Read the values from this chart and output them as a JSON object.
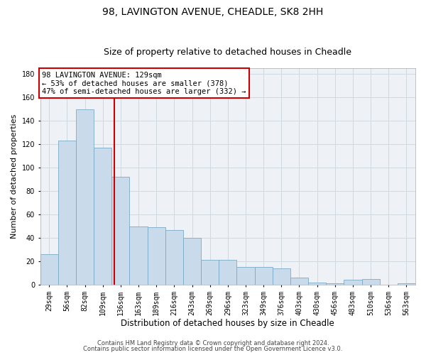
{
  "title1": "98, LAVINGTON AVENUE, CHEADLE, SK8 2HH",
  "title2": "Size of property relative to detached houses in Cheadle",
  "xlabel": "Distribution of detached houses by size in Cheadle",
  "ylabel": "Number of detached properties",
  "categories": [
    "29sqm",
    "56sqm",
    "82sqm",
    "109sqm",
    "136sqm",
    "163sqm",
    "189sqm",
    "216sqm",
    "243sqm",
    "269sqm",
    "296sqm",
    "323sqm",
    "349sqm",
    "376sqm",
    "403sqm",
    "430sqm",
    "456sqm",
    "483sqm",
    "510sqm",
    "536sqm",
    "563sqm"
  ],
  "values": [
    26,
    123,
    150,
    117,
    92,
    50,
    49,
    47,
    40,
    21,
    21,
    15,
    15,
    14,
    6,
    2,
    1,
    4,
    5,
    0,
    1
  ],
  "bar_color": "#c9daea",
  "bar_edge_color": "#7baac8",
  "grid_color": "#d0d8e0",
  "bg_color": "#eef2f7",
  "vline_color": "#cc0000",
  "vline_x": 3.63,
  "annotation_text": "98 LAVINGTON AVENUE: 129sqm\n← 53% of detached houses are smaller (378)\n47% of semi-detached houses are larger (332) →",
  "annotation_box_color": "#ffffff",
  "annotation_box_edge": "#cc0000",
  "ylim": [
    0,
    185
  ],
  "yticks": [
    0,
    20,
    40,
    60,
    80,
    100,
    120,
    140,
    160,
    180
  ],
  "footer1": "Contains HM Land Registry data © Crown copyright and database right 2024.",
  "footer2": "Contains public sector information licensed under the Open Government Licence v3.0.",
  "title1_fontsize": 10,
  "title2_fontsize": 9,
  "tick_fontsize": 7,
  "ylabel_fontsize": 8,
  "xlabel_fontsize": 8.5,
  "annotation_fontsize": 7.5,
  "footer_fontsize": 6
}
